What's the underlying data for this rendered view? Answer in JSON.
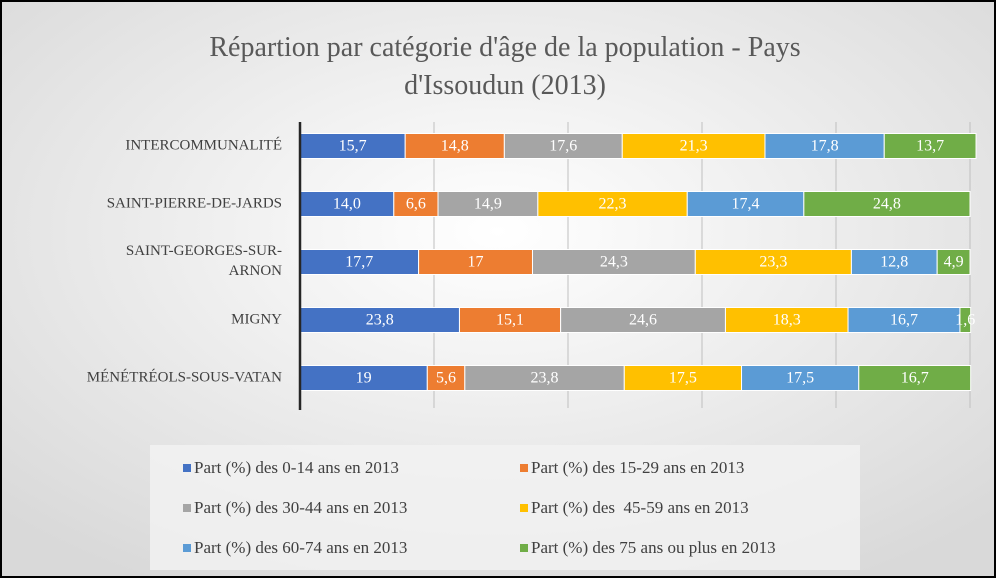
{
  "chart_data": {
    "type": "stacked_bar_horizontal",
    "title": "Répartion par catégorie d'âge de la population - Pays d'Issoudun (2013)",
    "categories": [
      "INTERCOMMUNALITÉ",
      "SAINT-PIERRE-DE-JARDS",
      "SAINT-GEORGES-SUR-ARNON",
      "MIGNY",
      "MÉNÉTRÉOLS-SOUS-VATAN"
    ],
    "series": [
      {
        "name": "Part (%) des 0-14 ans en 2013",
        "color": "#4472c4",
        "values": [
          15.7,
          14.0,
          17.7,
          23.8,
          19
        ],
        "value_labels": [
          "15,7",
          "14,0",
          "17,7",
          "23,8",
          "19"
        ]
      },
      {
        "name": "Part (%) des 15-29 ans en 2013",
        "color": "#ed7d31",
        "values": [
          14.8,
          6.6,
          17,
          15.1,
          5.6
        ],
        "value_labels": [
          "14,8",
          "6,6",
          "17",
          "15,1",
          "5,6"
        ]
      },
      {
        "name": "Part (%) des 30-44 ans en 2013",
        "color": "#a5a5a5",
        "values": [
          17.6,
          14.9,
          24.3,
          24.6,
          23.8
        ],
        "value_labels": [
          "17,6",
          "14,9",
          "24,3",
          "24,6",
          "23,8"
        ]
      },
      {
        "name": "Part (%) des  45-59 ans en 2013",
        "color": "#ffc000",
        "values": [
          21.3,
          22.3,
          23.3,
          18.3,
          17.5
        ],
        "value_labels": [
          "21,3",
          "22,3",
          "23,3",
          "18,3",
          "17,5"
        ]
      },
      {
        "name": "Part (%) des 60-74 ans en 2013",
        "color": "#5b9bd5",
        "values": [
          17.8,
          17.4,
          12.8,
          16.7,
          17.5
        ],
        "value_labels": [
          "17,8",
          "17,4",
          "12,8",
          "16,7",
          "17,5"
        ]
      },
      {
        "name": "Part (%) des 75 ans ou plus en 2013",
        "color": "#70ad47",
        "values": [
          13.7,
          24.8,
          4.9,
          1.6,
          16.7
        ],
        "value_labels": [
          "13,7",
          "24,8",
          "4,9",
          "1,6",
          "16,7"
        ]
      }
    ],
    "xlim": [
      0,
      100
    ],
    "xticks": [
      0,
      20,
      40,
      60,
      80,
      100
    ],
    "grid": true
  }
}
